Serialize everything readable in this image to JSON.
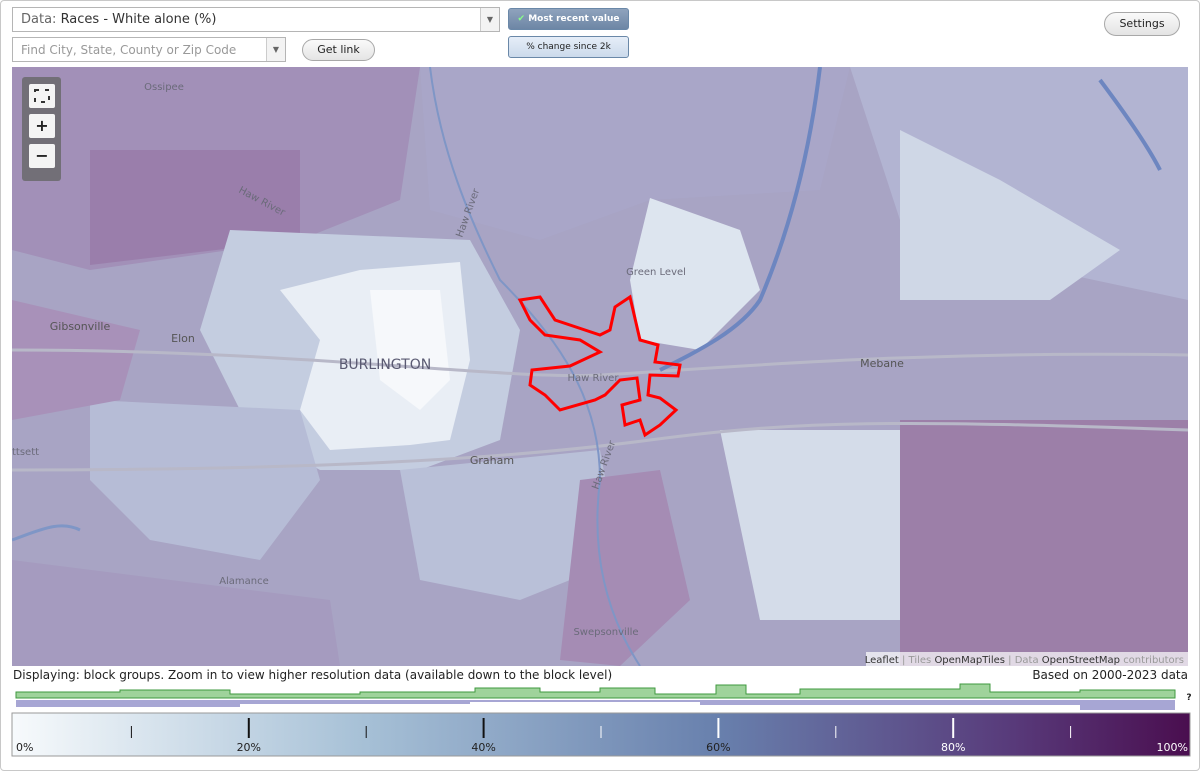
{
  "controls": {
    "data_prefix": "Data:",
    "data_value": "Races - White alone (%)",
    "most_recent": "Most recent value",
    "change": "% change since 2k",
    "settings": "Settings",
    "search_placeholder": "Find City, State, County or Zip Code",
    "get_link": "Get link",
    "zoom_in": "+",
    "zoom_out": "−"
  },
  "map": {
    "labels": [
      "Ossipee",
      "Haw River",
      "Haw River",
      "Gibsonville",
      "Elon",
      "BURLINGTON",
      "Green Level",
      "Haw River",
      "Mebane",
      "Graham",
      "Haw River",
      "Alamance",
      "Swepsonville",
      "ttsett"
    ],
    "attribution": {
      "leaflet": "Leaflet",
      "tiles_prefix": "Tiles",
      "tiles": "OpenMapTiles",
      "data_prefix": "Data",
      "data": "OpenStreetMap",
      "suffix": "contributors"
    }
  },
  "status": {
    "displaying": "Displaying: block groups. Zoom in to view higher resolution data (available down to the block level)",
    "based_on": "Based on 2000-2023 data",
    "help": "?"
  },
  "legend": {
    "ticks": [
      {
        "value": 0,
        "label": "0%"
      },
      {
        "value": 20,
        "label": "20%"
      },
      {
        "value": 40,
        "label": "40%"
      },
      {
        "value": 60,
        "label": "60%"
      },
      {
        "value": 80,
        "label": "80%"
      },
      {
        "value": 100,
        "label": "100%"
      }
    ],
    "minor_ticks": [
      10,
      30,
      50,
      70,
      90
    ]
  }
}
